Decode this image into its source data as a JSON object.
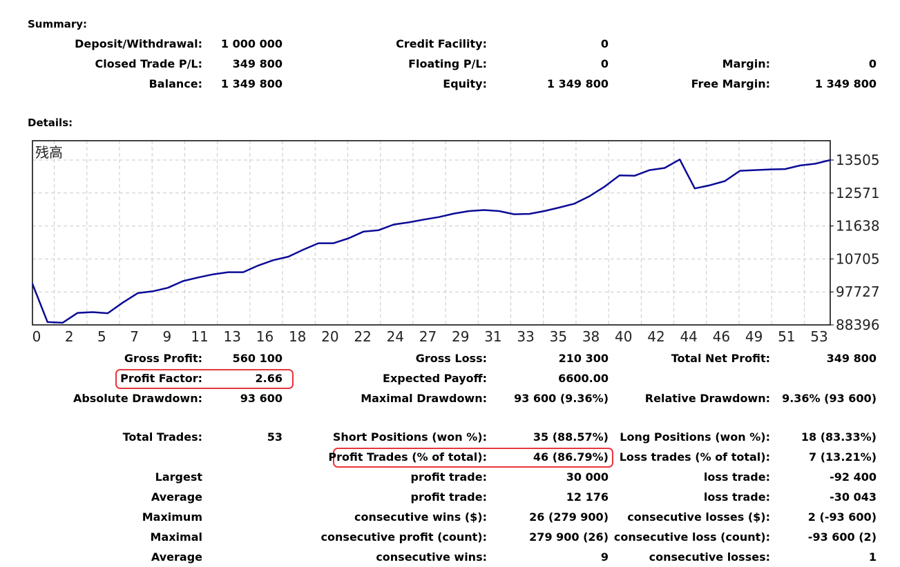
{
  "summary": {
    "title": "Summary:",
    "deposit_label": "Deposit/Withdrawal:",
    "deposit_value": "1 000 000",
    "credit_label": "Credit Facility:",
    "credit_value": "0",
    "closed_label": "Closed Trade P/L:",
    "closed_value": "349 800",
    "floating_label": "Floating P/L:",
    "floating_value": "0",
    "margin_label": "Margin:",
    "margin_value": "0",
    "balance_label": "Balance:",
    "balance_value": "1 349 800",
    "equity_label": "Equity:",
    "equity_value": "1 349 800",
    "free_margin_label": "Free Margin:",
    "free_margin_value": "1 349 800"
  },
  "details": {
    "title": "Details:"
  },
  "chart_data": {
    "type": "line",
    "title": "残高",
    "y_tick_labels": [
      "13505",
      "12571",
      "11638",
      "10705",
      "97727",
      "88396"
    ],
    "x_tick_labels": [
      "0",
      "2",
      "5",
      "7",
      "9",
      "11",
      "13",
      "16",
      "18",
      "20",
      "22",
      "24",
      "27",
      "29",
      "31",
      "33",
      "35",
      "38",
      "40",
      "42",
      "44",
      "46",
      "49",
      "51",
      "53"
    ],
    "ylim": [
      88396,
      135050
    ],
    "xlim": [
      0,
      53
    ],
    "grid": true,
    "line_color": "#0a0a96",
    "series": [
      {
        "x": [
          0,
          1,
          2,
          3,
          4,
          5,
          6,
          7,
          8,
          9,
          10,
          11,
          12,
          13,
          14,
          15,
          16,
          17,
          18,
          19,
          20,
          21,
          22,
          23,
          24,
          25,
          26,
          27,
          28,
          29,
          30,
          31,
          32,
          33,
          34,
          35,
          36,
          37,
          38,
          39,
          40,
          41,
          42,
          43,
          44,
          45,
          46,
          47,
          48,
          49,
          50,
          51,
          52,
          53
        ],
        "values": [
          100000,
          89200,
          89000,
          91800,
          92000,
          91700,
          94700,
          97400,
          97900,
          98900,
          100800,
          101800,
          102700,
          103300,
          103300,
          105200,
          106700,
          107700,
          109700,
          111500,
          111500,
          112900,
          114800,
          115200,
          116800,
          117400,
          118200,
          118900,
          119900,
          120600,
          120900,
          120600,
          119700,
          119800,
          120600,
          121600,
          122700,
          124800,
          127500,
          130700,
          130600,
          132200,
          132800,
          135200,
          127000,
          127900,
          129100,
          132000,
          132200,
          132400,
          132500,
          133500,
          134000,
          135050
        ]
      }
    ]
  },
  "stats": {
    "gross_profit_label": "Gross Profit:",
    "gross_profit_value": "560 100",
    "gross_loss_label": "Gross Loss:",
    "gross_loss_value": "210 300",
    "total_net_label": "Total Net Profit:",
    "total_net_value": "349 800",
    "profit_factor_label": "Profit Factor:",
    "profit_factor_value": "2.66",
    "expected_payoff_label": "Expected Payoff:",
    "expected_payoff_value": "6600.00",
    "abs_dd_label": "Absolute Drawdown:",
    "abs_dd_value": "93 600",
    "max_dd_label": "Maximal Drawdown:",
    "max_dd_value": "93 600 (9.36%)",
    "rel_dd_label": "Relative Drawdown:",
    "rel_dd_value": "9.36% (93 600)",
    "total_trades_label": "Total Trades:",
    "total_trades_value": "53",
    "short_label": "Short Positions (won %):",
    "short_value": "35 (88.57%)",
    "long_label": "Long Positions (won %):",
    "long_value": "18 (83.33%)",
    "profit_trades_label": "Profit Trades (% of total):",
    "profit_trades_value": "46 (86.79%)",
    "loss_trades_label": "Loss trades (% of total):",
    "loss_trades_value": "7 (13.21%)",
    "largest_label": "Largest",
    "largest_profit_label": "profit trade:",
    "largest_profit_value": "30 000",
    "largest_loss_label": "loss trade:",
    "largest_loss_value": "-92 400",
    "average_label": "Average",
    "average_profit_label": "profit trade:",
    "average_profit_value": "12 176",
    "average_loss_label": "loss trade:",
    "average_loss_value": "-30 043",
    "maximum_label": "Maximum",
    "cons_wins_label": "consecutive wins ($):",
    "cons_wins_value": "26 (279 900)",
    "cons_losses_label": "consecutive losses ($):",
    "cons_losses_value": "2 (-93 600)",
    "maximal_label": "Maximal",
    "cons_profit_count_label": "consecutive profit (count):",
    "cons_profit_count_value": "279 900 (26)",
    "cons_loss_count_label": "consecutive loss (count):",
    "cons_loss_count_value": "-93 600 (2)",
    "average2_label": "Average",
    "avg_cons_wins_label": "consecutive wins:",
    "avg_cons_wins_value": "9",
    "avg_cons_losses_label": "consecutive losses:",
    "avg_cons_losses_value": "1"
  },
  "highlight_color": "#e8353a"
}
